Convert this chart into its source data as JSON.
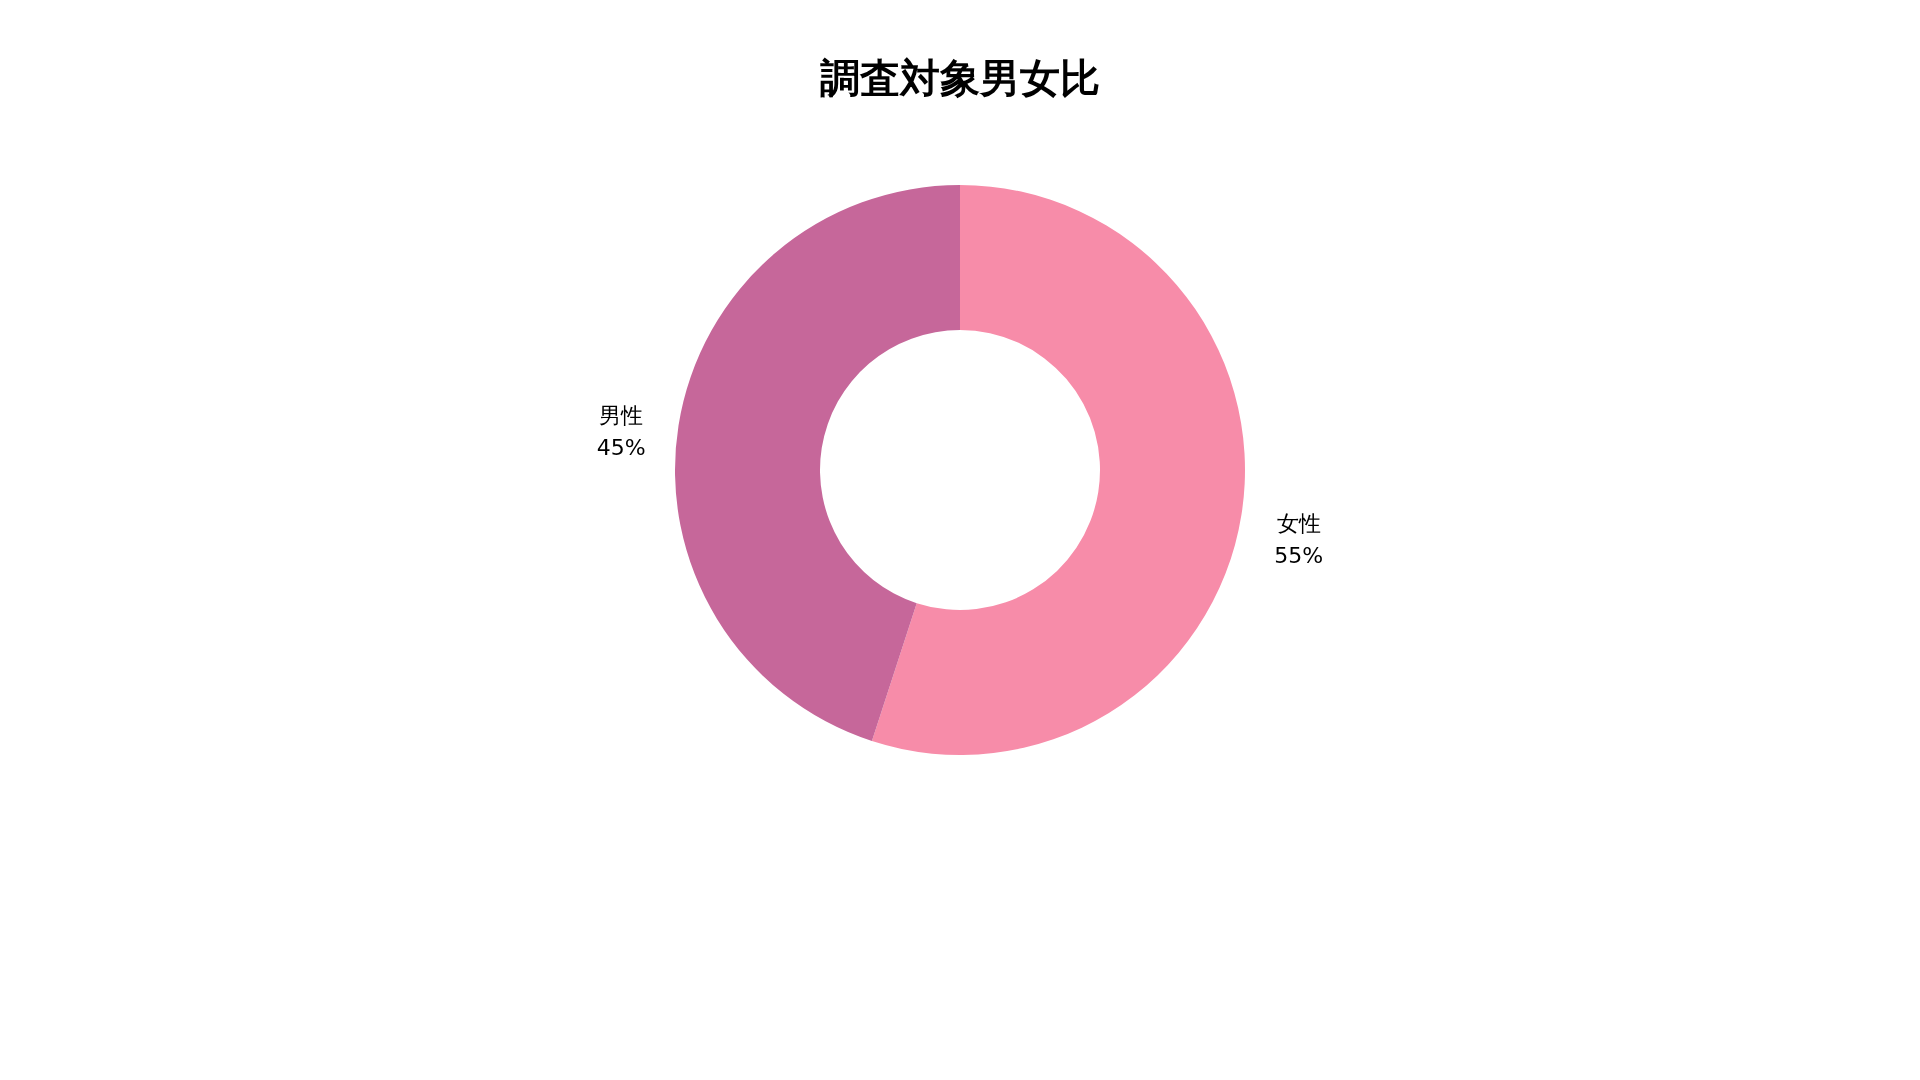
{
  "chart_data": {
    "type": "donut",
    "title": "調査対象男女比",
    "categories": [
      "女性",
      "男性"
    ],
    "values": [
      55,
      45
    ],
    "colors": [
      "#f78ca9",
      "#c6679a"
    ],
    "value_labels": [
      "55%",
      "45%"
    ]
  }
}
